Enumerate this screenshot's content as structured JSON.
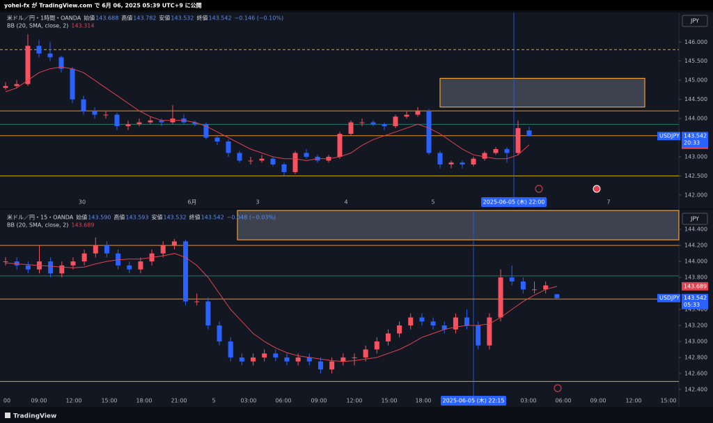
{
  "top_bar": {
    "text": "yohei-fx が TradingView.com で 6月 06, 2025 05:39 UTC+9 に公開"
  },
  "footer": {
    "brand": "TradingView"
  },
  "up_color": "#f7525f",
  "down_color": "#2962ff",
  "bb_color": "#e0434f",
  "panels": [
    {
      "symbol": "米ドル／円・1時間・OANDA",
      "ohlc": [
        {
          "label": "始値",
          "value": "143.688"
        },
        {
          "label": "高値",
          "value": "143.782"
        },
        {
          "label": "安値",
          "value": "143.532"
        },
        {
          "label": "終値",
          "value": "143.542"
        }
      ],
      "change": "−0.146 (−0.10%)",
      "indicator": "BB (20, SMA, close, 2)",
      "indicator_value": "143.314",
      "currency": "JPY",
      "ylim": [
        141.67,
        146.77
      ],
      "yticks": [
        {
          "value": 142,
          "label": "142.000"
        },
        {
          "value": 142.5,
          "label": "142.500"
        },
        {
          "value": 143,
          "label": "143.000"
        },
        {
          "value": 143.5,
          "label": "143.500"
        },
        {
          "value": 144,
          "label": "144.000"
        },
        {
          "value": 144.5,
          "label": "144.500"
        },
        {
          "value": 145,
          "label": "145.000"
        },
        {
          "value": 145.5,
          "label": "145.500"
        },
        {
          "value": 146,
          "label": "146.000"
        }
      ],
      "xticks": [
        "30",
        "6月",
        "3",
        "4",
        "5",
        "7"
      ],
      "crosshair_label": "2025-06-05 (木)   22:00",
      "ticker": "USDJPY",
      "last_price": 143.542,
      "countdown": "20:33",
      "bb_label": 143.314,
      "zone": [
        144.3,
        145.05
      ],
      "levels": [
        {
          "value": 145.8,
          "color": "#d4b106",
          "dashed": true
        },
        {
          "value": 144.2,
          "color": "#e8912d",
          "dashed": false
        },
        {
          "value": 143.85,
          "color": "#1f7a6a",
          "dashed": false
        },
        {
          "value": 143.55,
          "color": "#e8912d",
          "dashed": false
        },
        {
          "value": 142.5,
          "color": "#d4b106",
          "dashed": false
        }
      ],
      "candles": [
        [
          144.8,
          144.95,
          144.75,
          144.85
        ],
        [
          144.85,
          145.0,
          144.8,
          144.9
        ],
        [
          144.9,
          146.2,
          144.85,
          145.9
        ],
        [
          145.9,
          146.05,
          145.6,
          145.7
        ],
        [
          145.7,
          146.0,
          145.5,
          145.6
        ],
        [
          145.6,
          145.65,
          145.2,
          145.3
        ],
        [
          145.3,
          145.35,
          144.4,
          144.5
        ],
        [
          144.5,
          144.6,
          144.1,
          144.2
        ],
        [
          144.2,
          144.3,
          144.0,
          144.1
        ],
        [
          144.1,
          144.2,
          144.0,
          144.1
        ],
        [
          144.1,
          144.15,
          143.7,
          143.8
        ],
        [
          143.8,
          143.95,
          143.7,
          143.85
        ],
        [
          143.85,
          144.0,
          143.8,
          143.9
        ],
        [
          143.9,
          144.05,
          143.85,
          143.95
        ],
        [
          143.95,
          144.0,
          143.8,
          143.9
        ],
        [
          143.9,
          144.35,
          143.85,
          144.0
        ],
        [
          144.0,
          144.1,
          143.85,
          143.9
        ],
        [
          143.9,
          143.95,
          143.8,
          143.85
        ],
        [
          143.85,
          143.9,
          143.45,
          143.5
        ],
        [
          143.5,
          143.55,
          143.3,
          143.4
        ],
        [
          143.4,
          143.45,
          143.0,
          143.1
        ],
        [
          143.1,
          143.15,
          142.85,
          142.9
        ],
        [
          142.9,
          143.0,
          142.8,
          142.9
        ],
        [
          142.9,
          143.05,
          142.85,
          142.95
        ],
        [
          142.95,
          143.0,
          142.75,
          142.8
        ],
        [
          142.8,
          142.85,
          142.5,
          142.6
        ],
        [
          142.6,
          143.15,
          142.55,
          143.1
        ],
        [
          143.1,
          143.2,
          142.95,
          143.0
        ],
        [
          143.0,
          143.05,
          142.85,
          142.9
        ],
        [
          142.9,
          143.05,
          142.85,
          143.0
        ],
        [
          143.0,
          143.65,
          142.95,
          143.6
        ],
        [
          143.6,
          143.95,
          143.55,
          143.9
        ],
        [
          143.9,
          144.0,
          143.8,
          143.9
        ],
        [
          143.9,
          143.95,
          143.8,
          143.85
        ],
        [
          143.85,
          143.9,
          143.7,
          143.8
        ],
        [
          143.8,
          144.1,
          143.75,
          144.05
        ],
        [
          144.05,
          144.2,
          144.0,
          144.1
        ],
        [
          144.1,
          144.3,
          144.05,
          144.2
        ],
        [
          144.2,
          144.25,
          143.05,
          143.1
        ],
        [
          143.1,
          143.15,
          142.7,
          142.8
        ],
        [
          142.8,
          142.9,
          142.7,
          142.85
        ],
        [
          142.85,
          142.9,
          142.7,
          142.8
        ],
        [
          142.8,
          143.0,
          142.75,
          142.95
        ],
        [
          142.95,
          143.15,
          142.9,
          143.1
        ],
        [
          143.1,
          143.25,
          143.05,
          143.2
        ],
        [
          143.2,
          143.25,
          142.85,
          143.1
        ],
        [
          143.1,
          143.95,
          143.05,
          143.75
        ],
        [
          143.688,
          143.782,
          143.532,
          143.542
        ]
      ],
      "bb": [
        144.7,
        144.8,
        145.0,
        145.2,
        145.3,
        145.35,
        145.3,
        145.2,
        145.0,
        144.8,
        144.6,
        144.4,
        144.2,
        144.05,
        143.95,
        143.95,
        143.95,
        143.9,
        143.8,
        143.65,
        143.5,
        143.35,
        143.2,
        143.1,
        143.0,
        142.95,
        142.95,
        142.9,
        142.95,
        142.95,
        143.0,
        143.1,
        143.3,
        143.45,
        143.55,
        143.65,
        143.75,
        143.85,
        143.75,
        143.6,
        143.4,
        143.2,
        143.05,
        143.0,
        142.95,
        142.95,
        143.05,
        143.314
      ]
    },
    {
      "symbol": "米ドル／円・15・OANDA",
      "ohlc": [
        {
          "label": "始値",
          "value": "143.590"
        },
        {
          "label": "高値",
          "value": "143.593"
        },
        {
          "label": "安値",
          "value": "143.532"
        },
        {
          "label": "終値",
          "value": "143.542"
        }
      ],
      "change": "−0.048 (−0.03%)",
      "indicator": "BB (20, SMA, close, 2)",
      "indicator_value": "143.689",
      "currency": "JPY",
      "ylim": [
        142.216,
        144.637
      ],
      "yticks": [
        {
          "value": 142.4,
          "label": "142.400"
        },
        {
          "value": 142.6,
          "label": "142.600"
        },
        {
          "value": 142.8,
          "label": "142.800"
        },
        {
          "value": 143,
          "label": "143.000"
        },
        {
          "value": 143.2,
          "label": "143.200"
        },
        {
          "value": 143.4,
          "label": "143.400"
        },
        {
          "value": 143.8,
          "label": "143.800"
        },
        {
          "value": 144,
          "label": "144.000"
        },
        {
          "value": 144.2,
          "label": "144.200"
        },
        {
          "value": 144.4,
          "label": "144.400"
        }
      ],
      "xticks": [
        "00",
        "09:00",
        "12:00",
        "15:00",
        "18:00",
        "21:00",
        "5",
        "03:00",
        "06:00",
        "09:00",
        "12:00",
        "15:00",
        "18:00",
        "03:00",
        "06:00",
        "09:00",
        "12:00",
        "15:00"
      ],
      "crosshair_label": "2025-06-05 (木)   22:15",
      "ticker": "USDJPY",
      "last_price": 143.542,
      "countdown": "05:33",
      "bb_label": 143.689,
      "zone": [
        144.27,
        144.65
      ],
      "levels": [
        {
          "value": 144.2,
          "color": "#e8912d",
          "dashed": false
        },
        {
          "value": 143.82,
          "color": "#1f7a6a",
          "dashed": false
        },
        {
          "value": 143.53,
          "color": "#e8912d",
          "dashed": false
        },
        {
          "value": 142.5,
          "color": "#d4b106",
          "dashed": false
        }
      ],
      "candles": [
        [
          144.0,
          144.05,
          143.95,
          144.0
        ],
        [
          144.0,
          144.05,
          143.9,
          143.95
        ],
        [
          143.95,
          144.0,
          143.85,
          143.9
        ],
        [
          143.9,
          144.2,
          143.85,
          144.0
        ],
        [
          144.0,
          144.05,
          143.8,
          143.85
        ],
        [
          143.85,
          144.0,
          143.8,
          143.95
        ],
        [
          143.95,
          144.05,
          143.9,
          144.0
        ],
        [
          144.0,
          144.15,
          143.95,
          144.1
        ],
        [
          144.1,
          144.3,
          144.05,
          144.2
        ],
        [
          144.2,
          144.25,
          144.05,
          144.1
        ],
        [
          144.1,
          144.15,
          143.9,
          143.95
        ],
        [
          143.95,
          144.0,
          143.85,
          143.9
        ],
        [
          143.9,
          144.05,
          143.85,
          144.0
        ],
        [
          144.0,
          144.15,
          143.95,
          144.1
        ],
        [
          144.1,
          144.25,
          144.05,
          144.2
        ],
        [
          144.2,
          144.28,
          144.15,
          144.25
        ],
        [
          144.25,
          144.27,
          143.45,
          143.5
        ],
        [
          143.5,
          143.6,
          143.45,
          143.5
        ],
        [
          143.5,
          143.55,
          143.15,
          143.2
        ],
        [
          143.2,
          143.25,
          142.95,
          143.0
        ],
        [
          143.0,
          143.05,
          142.75,
          142.8
        ],
        [
          142.8,
          142.85,
          142.7,
          142.75
        ],
        [
          142.75,
          142.85,
          142.7,
          142.8
        ],
        [
          142.8,
          142.9,
          142.75,
          142.85
        ],
        [
          142.85,
          142.9,
          142.75,
          142.8
        ],
        [
          142.8,
          142.85,
          142.7,
          142.75
        ],
        [
          142.75,
          142.85,
          142.7,
          142.8
        ],
        [
          142.8,
          142.85,
          142.7,
          142.75
        ],
        [
          142.75,
          142.8,
          142.6,
          142.65
        ],
        [
          142.65,
          142.8,
          142.6,
          142.75
        ],
        [
          142.75,
          142.85,
          142.7,
          142.8
        ],
        [
          142.8,
          142.85,
          142.7,
          142.8
        ],
        [
          142.8,
          142.95,
          142.75,
          142.9
        ],
        [
          142.9,
          143.05,
          142.85,
          143.0
        ],
        [
          143.0,
          143.15,
          142.95,
          143.1
        ],
        [
          143.1,
          143.25,
          143.05,
          143.2
        ],
        [
          143.2,
          143.35,
          143.15,
          143.3
        ],
        [
          143.3,
          143.35,
          143.2,
          143.25
        ],
        [
          143.25,
          143.3,
          143.15,
          143.2
        ],
        [
          143.2,
          143.25,
          143.1,
          143.15
        ],
        [
          143.15,
          143.35,
          143.1,
          143.3
        ],
        [
          143.3,
          143.4,
          143.15,
          143.2
        ],
        [
          143.2,
          143.25,
          142.9,
          142.95
        ],
        [
          142.95,
          143.35,
          142.9,
          143.3
        ],
        [
          143.3,
          143.9,
          143.25,
          143.8
        ],
        [
          143.8,
          143.95,
          143.7,
          143.75
        ],
        [
          143.75,
          143.8,
          143.6,
          143.65
        ],
        [
          143.65,
          143.75,
          143.6,
          143.65
        ],
        [
          143.65,
          143.75,
          143.6,
          143.7
        ],
        [
          143.59,
          143.593,
          143.532,
          143.542
        ]
      ],
      "bb": [
        143.98,
        143.97,
        143.96,
        143.95,
        143.94,
        143.93,
        143.92,
        143.93,
        143.97,
        144.0,
        144.02,
        144.03,
        144.03,
        144.05,
        144.07,
        144.1,
        144.05,
        143.95,
        143.8,
        143.6,
        143.4,
        143.25,
        143.1,
        143.0,
        142.92,
        142.86,
        142.82,
        142.8,
        142.78,
        142.76,
        142.75,
        142.76,
        142.78,
        142.8,
        142.85,
        142.9,
        142.97,
        143.05,
        143.1,
        143.15,
        143.18,
        143.2,
        143.2,
        143.22,
        143.3,
        143.4,
        143.5,
        143.58,
        143.65,
        143.689
      ]
    }
  ]
}
